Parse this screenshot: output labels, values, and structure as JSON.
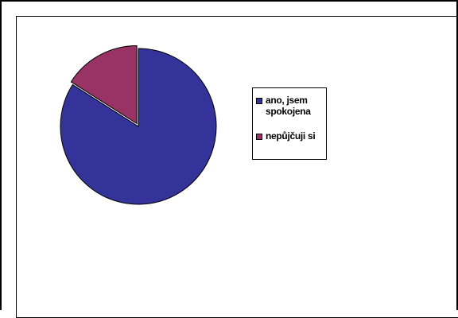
{
  "chart_data": {
    "type": "pie",
    "title": "",
    "slices": [
      {
        "label": "ano, jsem spokojena",
        "value": 84,
        "color": "#333399"
      },
      {
        "label": "nepůjčuji si",
        "value": 16,
        "color": "#993366"
      }
    ],
    "legend_position": "right"
  }
}
